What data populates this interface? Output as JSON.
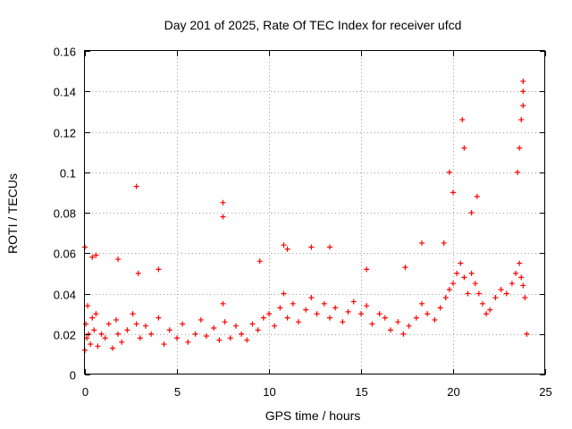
{
  "chart_data": {
    "type": "scatter",
    "title": "Day 201 of 2025, Rate Of TEC Index for receiver ufcd",
    "xlabel": "GPS time / hours",
    "ylabel": "ROTI / TECUs",
    "xlim": [
      0,
      25
    ],
    "ylim": [
      0,
      0.16
    ],
    "xticks": [
      0,
      5,
      10,
      15,
      20,
      25
    ],
    "xtick_labels": [
      "0",
      "5",
      "10",
      "15",
      "20",
      "25"
    ],
    "yticks": [
      0,
      0.02,
      0.04,
      0.06,
      0.08,
      0.1,
      0.12,
      0.14,
      0.16
    ],
    "ytick_labels": [
      "0",
      "0.02",
      "0.04",
      "0.06",
      "0.08",
      "0.1",
      "0.12",
      "0.14",
      "0.16"
    ],
    "grid": true,
    "marker": "+",
    "color": "#ff0000",
    "series": [
      {
        "name": "ROTI",
        "x": [
          0.0,
          0.05,
          0.1,
          0.15,
          0.2,
          0.3,
          0.4,
          0.5,
          0.6,
          0.7,
          0.9,
          1.1,
          1.3,
          1.5,
          1.7,
          1.8,
          2.0,
          2.3,
          2.6,
          2.8,
          3.0,
          3.3,
          3.6,
          4.0,
          4.3,
          4.6,
          5.0,
          5.3,
          5.6,
          6.0,
          6.3,
          6.6,
          7.0,
          7.3,
          7.5,
          7.6,
          7.9,
          8.2,
          8.5,
          8.8,
          9.1,
          9.4,
          9.7,
          10.0,
          10.3,
          10.6,
          10.8,
          11.0,
          11.3,
          11.6,
          12.0,
          12.3,
          12.6,
          13.0,
          13.3,
          13.6,
          14.0,
          14.3,
          14.6,
          15.0,
          15.3,
          15.6,
          16.0,
          16.3,
          16.6,
          17.0,
          17.3,
          17.6,
          18.0,
          18.3,
          18.6,
          19.0,
          19.3,
          19.6,
          19.8,
          20.0,
          20.2,
          20.4,
          20.6,
          20.8,
          21.0,
          21.2,
          21.4,
          21.6,
          21.8,
          22.0,
          22.3,
          22.6,
          22.9,
          23.2,
          23.4,
          23.6,
          23.7,
          23.8,
          23.9,
          24.0,
          2.8,
          7.5,
          7.5,
          18.3,
          20.5,
          20.6,
          23.8,
          23.8,
          23.8,
          23.7,
          23.6,
          23.5,
          19.8,
          20.0,
          21.3,
          21.0,
          19.5,
          10.8,
          11.0,
          12.3,
          13.3,
          0.0,
          0.4,
          0.6,
          1.8,
          4.0,
          2.9,
          15.3,
          9.5,
          17.4
        ],
        "y": [
          0.012,
          0.025,
          0.018,
          0.034,
          0.02,
          0.015,
          0.028,
          0.022,
          0.03,
          0.014,
          0.02,
          0.018,
          0.025,
          0.013,
          0.027,
          0.02,
          0.016,
          0.022,
          0.03,
          0.025,
          0.018,
          0.024,
          0.02,
          0.028,
          0.015,
          0.022,
          0.018,
          0.025,
          0.016,
          0.02,
          0.027,
          0.019,
          0.023,
          0.017,
          0.035,
          0.026,
          0.018,
          0.024,
          0.02,
          0.017,
          0.025,
          0.022,
          0.028,
          0.03,
          0.024,
          0.033,
          0.04,
          0.028,
          0.035,
          0.026,
          0.032,
          0.038,
          0.03,
          0.035,
          0.028,
          0.033,
          0.026,
          0.031,
          0.036,
          0.03,
          0.034,
          0.025,
          0.03,
          0.028,
          0.022,
          0.026,
          0.02,
          0.024,
          0.028,
          0.035,
          0.03,
          0.027,
          0.033,
          0.038,
          0.042,
          0.045,
          0.05,
          0.055,
          0.048,
          0.04,
          0.05,
          0.045,
          0.04,
          0.035,
          0.03,
          0.032,
          0.038,
          0.042,
          0.04,
          0.045,
          0.05,
          0.055,
          0.048,
          0.044,
          0.038,
          0.02,
          0.093,
          0.085,
          0.078,
          0.065,
          0.126,
          0.112,
          0.145,
          0.14,
          0.133,
          0.126,
          0.112,
          0.1,
          0.1,
          0.09,
          0.088,
          0.08,
          0.065,
          0.064,
          0.062,
          0.063,
          0.063,
          0.063,
          0.058,
          0.059,
          0.057,
          0.052,
          0.05,
          0.052,
          0.056,
          0.053
        ]
      }
    ]
  }
}
